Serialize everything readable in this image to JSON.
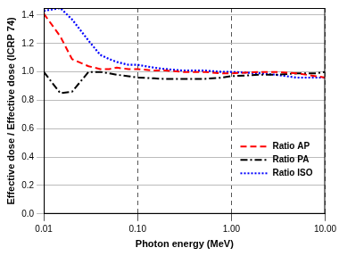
{
  "chart_data": {
    "type": "line",
    "x_label": "Photon energy (MeV)",
    "y_label": "Effective dose / Effective dose (ICRP 74)",
    "log": "x",
    "grid": true,
    "legend": "lower right",
    "marker": "none",
    "xlim": [
      0.01,
      10
    ],
    "xticks": [
      0.01,
      {
        "value": 0.1,
        "label": "0.10"
      },
      {
        "value": 1,
        "label": "1.00"
      },
      {
        "value": 10,
        "label": "10.00"
      }
    ],
    "ylim": [
      0,
      1.45
    ],
    "yticks": [
      {
        "value": 0,
        "label": "0.0"
      },
      {
        "value": 0.2,
        "label": "0.2"
      },
      {
        "value": 0.4,
        "label": "0.4"
      },
      {
        "value": 0.6,
        "label": "0.6"
      },
      {
        "value": 0.8,
        "label": "0.8"
      },
      {
        "value": 1,
        "label": "1.0"
      },
      {
        "value": 1.2,
        "label": "1.2"
      },
      {
        "value": 1.4,
        "label": "1.4"
      }
    ],
    "x": [
      0.01,
      0.015,
      0.02,
      0.03,
      0.04,
      0.05,
      0.06,
      0.08,
      0.1,
      0.15,
      0.2,
      0.3,
      0.5,
      0.8,
      1,
      2,
      3,
      5,
      8,
      10
    ],
    "series": [
      {
        "name": "Ratio AP",
        "color": "#ff0000",
        "line_style": "dashed",
        "values": [
          1.41,
          1.25,
          1.09,
          1.04,
          1.02,
          1.02,
          1.03,
          1.02,
          1.02,
          1.01,
          1.01,
          1.0,
          1.0,
          0.99,
          0.99,
          1.0,
          1.0,
          0.99,
          0.97,
          0.96
        ]
      },
      {
        "name": "Ratio PA",
        "color": "#000000",
        "line_style": "dashdot",
        "values": [
          1.0,
          0.85,
          0.86,
          1.0,
          1.0,
          0.99,
          0.98,
          0.97,
          0.96,
          0.955,
          0.95,
          0.95,
          0.95,
          0.96,
          0.97,
          0.98,
          0.98,
          0.99,
          0.99,
          1.0
        ]
      },
      {
        "name": "Ratio ISO",
        "color": "#0000ff",
        "line_style": "dotted",
        "values": [
          1.43,
          1.45,
          1.37,
          1.22,
          1.12,
          1.09,
          1.07,
          1.05,
          1.05,
          1.03,
          1.02,
          1.01,
          1.01,
          1.0,
          1.0,
          0.99,
          0.98,
          0.96,
          0.96,
          0.96
        ]
      }
    ]
  }
}
